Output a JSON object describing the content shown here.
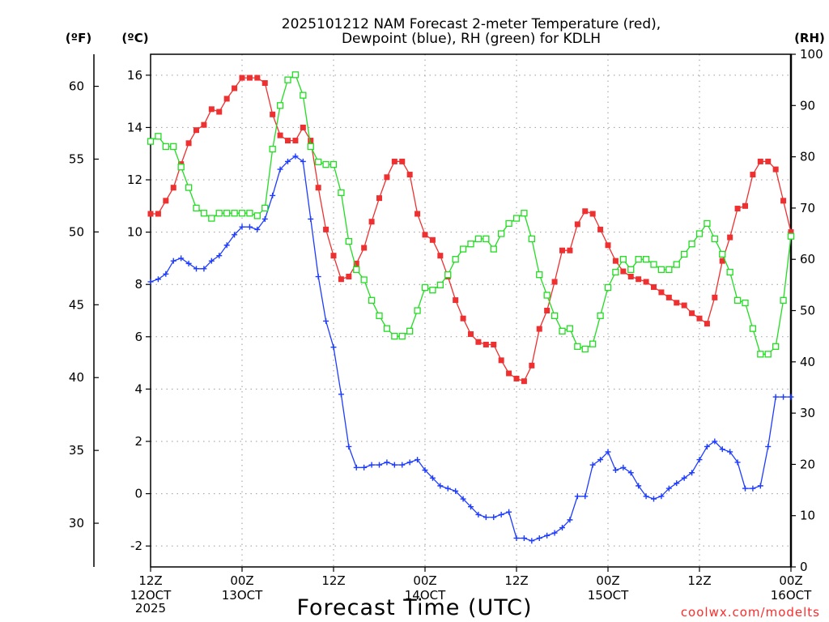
{
  "chart_data": {
    "type": "line",
    "title": "2025101212 NAM Forecast 2-meter Temperature (red),",
    "title_line2": "Dewpoint (blue), RH (green) for KDLH",
    "xlabel": "Forecast Time (UTC)",
    "credit": "coolwx.com/modelts",
    "units": {
      "fahrenheit": "(ºF)",
      "celsius": "(ºC)",
      "rh": "(RH)"
    },
    "x_hours_range": [
      0,
      84
    ],
    "x_ticks": [
      {
        "hour": 0,
        "line1": "12Z",
        "line2": "12OCT",
        "line3": "2025"
      },
      {
        "hour": 12,
        "line1": "00Z",
        "line2": "13OCT",
        "line3": ""
      },
      {
        "hour": 24,
        "line1": "12Z",
        "line2": "",
        "line3": ""
      },
      {
        "hour": 36,
        "line1": "00Z",
        "line2": "14OCT",
        "line3": ""
      },
      {
        "hour": 48,
        "line1": "12Z",
        "line2": "",
        "line3": ""
      },
      {
        "hour": 60,
        "line1": "00Z",
        "line2": "15OCT",
        "line3": ""
      },
      {
        "hour": 72,
        "line1": "12Z",
        "line2": "",
        "line3": ""
      },
      {
        "hour": 84,
        "line1": "00Z",
        "line2": "16OCT",
        "line3": ""
      }
    ],
    "celsius_range": [
      -2.8,
      16.8
    ],
    "celsius_ticks": [
      "-2",
      "0",
      "2",
      "4",
      "6",
      "8",
      "10",
      "12",
      "14",
      "16"
    ],
    "fahrenheit_range": [
      27,
      62.2
    ],
    "fahrenheit_ticks": [
      "30",
      "35",
      "40",
      "45",
      "50",
      "55",
      "60"
    ],
    "rh_range": [
      0,
      100
    ],
    "rh_ticks": [
      "0",
      "10",
      "20",
      "30",
      "40",
      "50",
      "60",
      "70",
      "80",
      "90",
      "100"
    ],
    "series": [
      {
        "name": "Temperature",
        "unit": "C",
        "color": "#ee3030",
        "marker": "filled-square",
        "x": [
          0,
          1,
          2,
          3,
          4,
          5,
          6,
          7,
          8,
          9,
          10,
          11,
          12,
          13,
          14,
          15,
          16,
          17,
          18,
          19,
          20,
          21,
          22,
          23,
          24,
          25,
          26,
          27,
          28,
          29,
          30,
          31,
          32,
          33,
          34,
          35,
          36,
          37,
          38,
          39,
          40,
          41,
          42,
          43,
          44,
          45,
          46,
          47,
          48,
          49,
          50,
          51,
          52,
          53,
          54,
          55,
          56,
          57,
          58,
          59,
          60,
          61,
          62,
          63,
          64,
          65,
          66,
          67,
          68,
          69,
          70,
          71,
          72,
          73,
          74,
          75,
          76,
          77,
          78,
          79,
          80,
          81,
          82,
          83,
          84
        ],
        "values": [
          10.7,
          10.7,
          11.2,
          11.7,
          12.6,
          13.4,
          13.9,
          14.1,
          14.7,
          14.6,
          15.1,
          15.5,
          15.9,
          15.9,
          15.9,
          15.7,
          14.5,
          13.7,
          13.5,
          13.5,
          14.0,
          13.5,
          11.7,
          10.1,
          9.1,
          8.2,
          8.3,
          8.8,
          9.4,
          10.4,
          11.3,
          12.1,
          12.7,
          12.7,
          12.2,
          10.7,
          9.9,
          9.7,
          9.1,
          8.3,
          7.4,
          6.7,
          6.1,
          5.8,
          5.7,
          5.7,
          5.1,
          4.6,
          4.4,
          4.3,
          4.9,
          6.3,
          7.0,
          8.1,
          9.3,
          9.3,
          10.3,
          10.8,
          10.7,
          10.1,
          9.5,
          8.9,
          8.5,
          8.3,
          8.2,
          8.1,
          7.9,
          7.7,
          7.5,
          7.3,
          7.2,
          6.9,
          6.7,
          6.5,
          7.5,
          8.9,
          9.8,
          10.9,
          11.0,
          12.2,
          12.7,
          12.7,
          12.4,
          11.2,
          10.0
        ]
      },
      {
        "name": "Dewpoint",
        "unit": "C",
        "color": "#1e3cff",
        "marker": "plus",
        "x": [
          0,
          1,
          2,
          3,
          4,
          5,
          6,
          7,
          8,
          9,
          10,
          11,
          12,
          13,
          14,
          15,
          16,
          17,
          18,
          19,
          20,
          21,
          22,
          23,
          24,
          25,
          26,
          27,
          28,
          29,
          30,
          31,
          32,
          33,
          34,
          35,
          36,
          37,
          38,
          39,
          40,
          41,
          42,
          43,
          44,
          45,
          46,
          47,
          48,
          49,
          50,
          51,
          52,
          53,
          54,
          55,
          56,
          57,
          58,
          59,
          60,
          61,
          62,
          63,
          64,
          65,
          66,
          67,
          68,
          69,
          70,
          71,
          72,
          73,
          74,
          75,
          76,
          77,
          78,
          79,
          80,
          81,
          82,
          83,
          84
        ],
        "values": [
          8.1,
          8.2,
          8.4,
          8.9,
          9.0,
          8.8,
          8.6,
          8.6,
          8.9,
          9.1,
          9.5,
          9.9,
          10.2,
          10.2,
          10.1,
          10.5,
          11.4,
          12.4,
          12.7,
          12.9,
          12.7,
          10.5,
          8.3,
          6.6,
          5.6,
          3.8,
          1.8,
          1.0,
          1.0,
          1.1,
          1.1,
          1.2,
          1.1,
          1.1,
          1.2,
          1.3,
          0.9,
          0.6,
          0.3,
          0.2,
          0.1,
          -0.2,
          -0.5,
          -0.8,
          -0.9,
          -0.9,
          -0.8,
          -0.7,
          -1.7,
          -1.7,
          -1.8,
          -1.7,
          -1.6,
          -1.5,
          -1.3,
          -1.0,
          -0.1,
          -0.1,
          1.1,
          1.3,
          1.6,
          0.9,
          1.0,
          0.8,
          0.3,
          -0.1,
          -0.2,
          -0.1,
          0.2,
          0.4,
          0.6,
          0.8,
          1.3,
          1.8,
          2.0,
          1.7,
          1.6,
          1.2,
          0.2,
          0.2,
          0.3,
          1.8,
          3.7,
          3.7,
          3.7
        ]
      },
      {
        "name": "Relative Humidity",
        "unit": "%",
        "color": "#22dd22",
        "marker": "open-square",
        "x": [
          0,
          1,
          2,
          3,
          4,
          5,
          6,
          7,
          8,
          9,
          10,
          11,
          12,
          13,
          14,
          15,
          16,
          17,
          18,
          19,
          20,
          21,
          22,
          23,
          24,
          25,
          26,
          27,
          28,
          29,
          30,
          31,
          32,
          33,
          34,
          35,
          36,
          37,
          38,
          39,
          40,
          41,
          42,
          43,
          44,
          45,
          46,
          47,
          48,
          49,
          50,
          51,
          52,
          53,
          54,
          55,
          56,
          57,
          58,
          59,
          60,
          61,
          62,
          63,
          64,
          65,
          66,
          67,
          68,
          69,
          70,
          71,
          72,
          73,
          74,
          75,
          76,
          77,
          78,
          79,
          80,
          81,
          82,
          83,
          84
        ],
        "values": [
          83,
          84,
          82,
          82,
          78,
          74,
          70,
          69,
          68,
          69,
          69,
          69,
          69,
          69,
          68.5,
          70,
          81.5,
          90,
          95,
          96,
          92,
          82,
          79,
          78.5,
          78.5,
          73,
          63.5,
          58,
          56,
          52,
          49,
          46.5,
          45,
          45,
          46,
          50,
          54.5,
          54,
          55,
          57,
          60,
          62,
          63,
          64,
          64,
          62,
          65,
          67,
          68,
          69,
          64,
          57,
          53,
          49,
          46,
          46.5,
          43,
          42.5,
          43.5,
          49,
          54.5,
          57.5,
          60,
          58,
          60,
          60,
          59,
          58,
          58,
          59,
          61,
          63,
          65,
          67,
          64,
          61,
          57.5,
          52,
          51.5,
          46.5,
          41.5,
          41.5,
          43,
          52,
          64.5
        ]
      }
    ]
  }
}
